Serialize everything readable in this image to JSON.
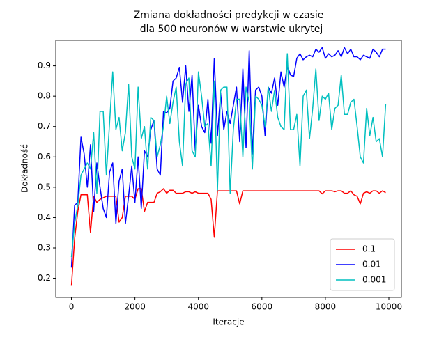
{
  "chart_data": {
    "type": "line",
    "title": [
      "Zmiana dokładności predykcji w czasie",
      "dla 500 neuronów w warstwie ukrytej"
    ],
    "x_label": "Iteracje",
    "y_label": "Dokładność",
    "x": [
      0,
      100,
      200,
      300,
      400,
      500,
      600,
      700,
      800,
      900,
      1000,
      1100,
      1200,
      1300,
      1400,
      1500,
      1600,
      1700,
      1800,
      1900,
      2000,
      2100,
      2200,
      2300,
      2400,
      2500,
      2600,
      2700,
      2800,
      2900,
      3000,
      3100,
      3200,
      3300,
      3400,
      3500,
      3600,
      3700,
      3800,
      3900,
      4000,
      4100,
      4200,
      4300,
      4400,
      4500,
      4600,
      4700,
      4800,
      4900,
      5000,
      5100,
      5200,
      5300,
      5400,
      5500,
      5600,
      5700,
      5800,
      5900,
      6000,
      6100,
      6200,
      6300,
      6400,
      6500,
      6600,
      6700,
      6800,
      6900,
      7000,
      7100,
      7200,
      7300,
      7400,
      7500,
      7600,
      7700,
      7800,
      7900,
      8000,
      8100,
      8200,
      8300,
      8400,
      8500,
      8600,
      8700,
      8800,
      8900,
      9000,
      9100,
      9200,
      9300,
      9400,
      9500,
      9600,
      9700,
      9800,
      9900
    ],
    "series": [
      {
        "name": "0.1",
        "color": "#ff0000",
        "values": [
          0.175,
          0.33,
          0.42,
          0.475,
          0.475,
          0.475,
          0.35,
          0.47,
          0.45,
          0.46,
          0.465,
          0.47,
          0.47,
          0.47,
          0.47,
          0.385,
          0.4,
          0.47,
          0.47,
          0.47,
          0.46,
          0.495,
          0.495,
          0.42,
          0.45,
          0.45,
          0.45,
          0.48,
          0.485,
          0.495,
          0.48,
          0.49,
          0.49,
          0.48,
          0.48,
          0.48,
          0.485,
          0.485,
          0.48,
          0.485,
          0.48,
          0.48,
          0.48,
          0.48,
          0.46,
          0.335,
          0.488,
          0.488,
          0.488,
          0.488,
          0.488,
          0.488,
          0.488,
          0.445,
          0.488,
          0.488,
          0.488,
          0.488,
          0.488,
          0.488,
          0.488,
          0.488,
          0.488,
          0.488,
          0.488,
          0.488,
          0.488,
          0.488,
          0.488,
          0.488,
          0.488,
          0.488,
          0.488,
          0.488,
          0.488,
          0.488,
          0.488,
          0.488,
          0.488,
          0.478,
          0.488,
          0.488,
          0.488,
          0.485,
          0.488,
          0.488,
          0.48,
          0.48,
          0.488,
          0.475,
          0.47,
          0.445,
          0.48,
          0.485,
          0.48,
          0.488,
          0.488,
          0.48,
          0.488,
          0.482
        ]
      },
      {
        "name": "0.01",
        "color": "#0000ff",
        "values": [
          0.235,
          0.44,
          0.45,
          0.665,
          0.61,
          0.5,
          0.64,
          0.42,
          0.58,
          0.5,
          0.43,
          0.4,
          0.55,
          0.58,
          0.38,
          0.52,
          0.56,
          0.38,
          0.47,
          0.57,
          0.45,
          0.6,
          0.43,
          0.62,
          0.6,
          0.69,
          0.72,
          0.56,
          0.54,
          0.75,
          0.745,
          0.76,
          0.85,
          0.86,
          0.895,
          0.78,
          0.9,
          0.75,
          0.87,
          0.62,
          0.77,
          0.7,
          0.68,
          0.79,
          0.645,
          0.925,
          0.67,
          0.81,
          0.69,
          0.75,
          0.71,
          0.77,
          0.83,
          0.65,
          0.89,
          0.63,
          0.95,
          0.61,
          0.82,
          0.83,
          0.8,
          0.67,
          0.83,
          0.81,
          0.86,
          0.77,
          0.88,
          0.83,
          0.9,
          0.87,
          0.865,
          0.925,
          0.94,
          0.92,
          0.93,
          0.935,
          0.93,
          0.955,
          0.945,
          0.96,
          0.925,
          0.94,
          0.93,
          0.935,
          0.95,
          0.93,
          0.96,
          0.94,
          0.955,
          0.93,
          0.93,
          0.92,
          0.935,
          0.93,
          0.925,
          0.955,
          0.945,
          0.93,
          0.955,
          0.955
        ]
      },
      {
        "name": "0.001",
        "color": "#00bfbf",
        "values": [
          0.27,
          0.38,
          0.44,
          0.54,
          0.56,
          0.58,
          0.56,
          0.68,
          0.48,
          0.75,
          0.75,
          0.54,
          0.71,
          0.88,
          0.69,
          0.73,
          0.62,
          0.68,
          0.84,
          0.6,
          0.56,
          0.83,
          0.66,
          0.7,
          0.56,
          0.73,
          0.72,
          0.6,
          0.64,
          0.7,
          0.8,
          0.71,
          0.78,
          0.83,
          0.65,
          0.57,
          0.84,
          0.86,
          0.62,
          0.6,
          0.88,
          0.8,
          0.7,
          0.71,
          0.57,
          0.85,
          0.49,
          0.82,
          0.83,
          0.83,
          0.48,
          0.69,
          0.79,
          0.79,
          0.6,
          0.83,
          0.78,
          0.56,
          0.8,
          0.79,
          0.77,
          0.7,
          0.83,
          0.75,
          0.82,
          0.73,
          0.7,
          0.69,
          0.94,
          0.69,
          0.69,
          0.74,
          0.57,
          0.8,
          0.82,
          0.66,
          0.76,
          0.89,
          0.72,
          0.8,
          0.79,
          0.81,
          0.69,
          0.76,
          0.77,
          0.87,
          0.74,
          0.74,
          0.78,
          0.79,
          0.7,
          0.6,
          0.58,
          0.76,
          0.67,
          0.73,
          0.65,
          0.66,
          0.6,
          0.775
        ]
      }
    ],
    "xlim": [
      -495,
      10395
    ],
    "ylim": [
      0.137,
      0.984
    ],
    "xticks": [
      0,
      2000,
      4000,
      6000,
      8000,
      10000
    ],
    "yticks": [
      0.2,
      0.3,
      0.4,
      0.5,
      0.6,
      0.7,
      0.8,
      0.9
    ],
    "legend": "lower right",
    "grid": false
  }
}
